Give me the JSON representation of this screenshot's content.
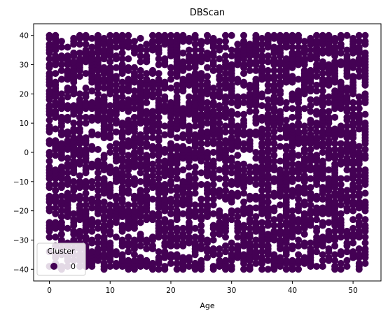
{
  "chart_data": {
    "type": "scatter",
    "title": "DBScan",
    "xlabel": "Age",
    "ylabel": "",
    "xlim": [
      -2.6,
      54.6
    ],
    "ylim": [
      -44,
      44
    ],
    "x_ticks": [
      0,
      10,
      20,
      30,
      40,
      50
    ],
    "y_ticks": [
      -40,
      -30,
      -20,
      -10,
      0,
      10,
      20,
      30,
      40
    ],
    "grid": false,
    "legend": {
      "title": "Cluster",
      "placement": "lower-left",
      "entries": [
        "0"
      ]
    },
    "series": [
      {
        "name": "0",
        "color": "#440154",
        "x_range": [
          0,
          52
        ],
        "y_range": [
          -40,
          40
        ],
        "x_step": 1,
        "y_step": 1,
        "coverage": 0.62,
        "marker": "circle"
      }
    ]
  }
}
